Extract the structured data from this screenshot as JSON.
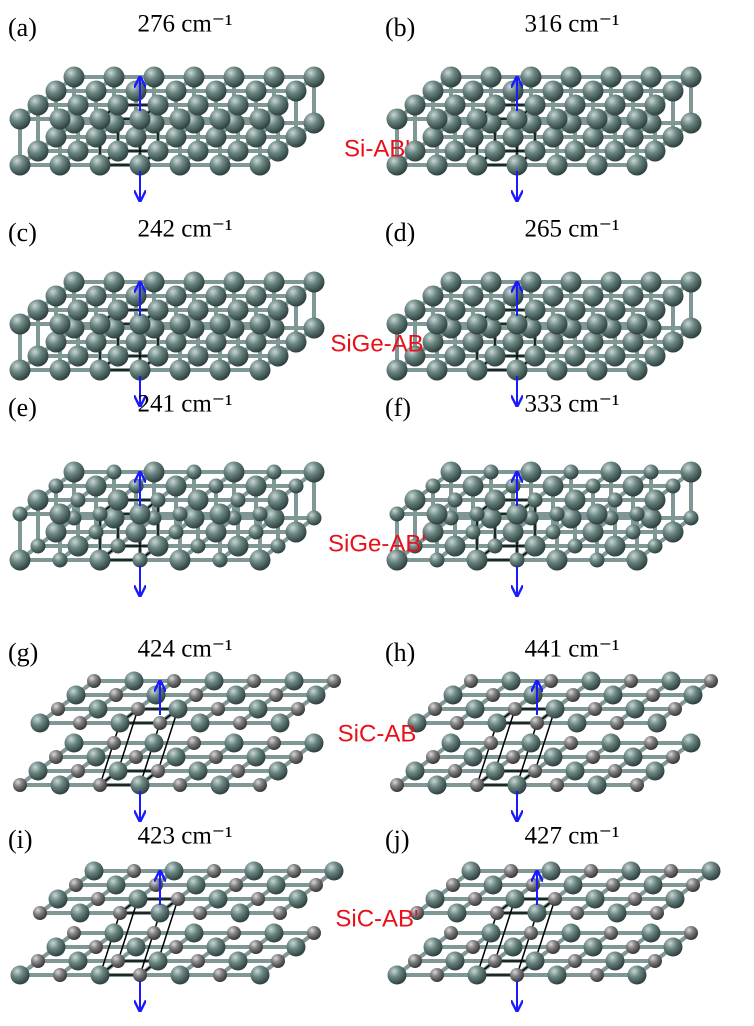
{
  "panels": [
    {
      "label": "(a)",
      "frequency": "276 cm⁻¹"
    },
    {
      "label": "(b)",
      "frequency": "316 cm⁻¹"
    },
    {
      "label": "(c)",
      "frequency": "242 cm⁻¹"
    },
    {
      "label": "(d)",
      "frequency": "265 cm⁻¹"
    },
    {
      "label": "(e)",
      "frequency": "241 cm⁻¹"
    },
    {
      "label": "(f)",
      "frequency": "333 cm⁻¹"
    },
    {
      "label": "(g)",
      "frequency": "424 cm⁻¹"
    },
    {
      "label": "(h)",
      "frequency": "441 cm⁻¹"
    },
    {
      "label": "(i)",
      "frequency": "423 cm⁻¹"
    },
    {
      "label": "(j)",
      "frequency": "427 cm⁻¹"
    }
  ],
  "structures": [
    "Si-AB'",
    "SiGe-AB",
    "SiGe-AB'",
    "SiC-AB",
    "SiC-AB'"
  ]
}
